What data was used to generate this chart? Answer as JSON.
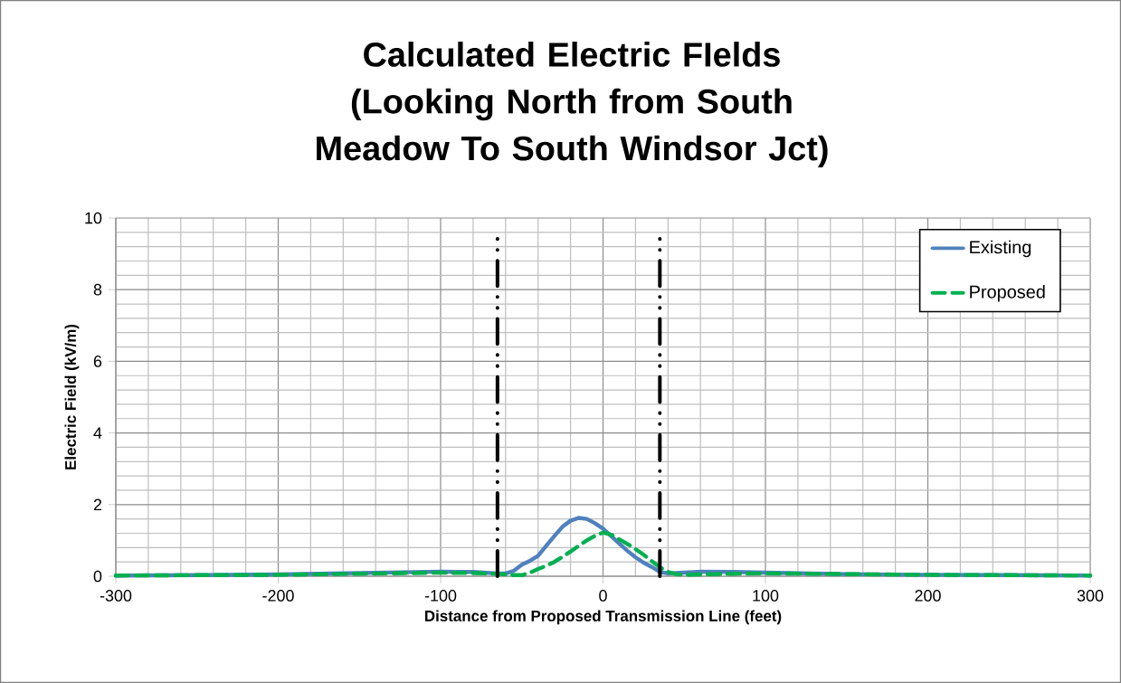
{
  "chart_data": {
    "type": "line",
    "title": "Calculated Electric FIelds (Looking North from South Meadow To South Windsor Jct)",
    "xlabel": "Distance from Proposed Transmission Line (feet)",
    "ylabel": "Electric Field (kV/m)",
    "xlim": [
      -300,
      300
    ],
    "ylim": [
      0,
      10
    ],
    "xticks": [
      -300,
      -200,
      -100,
      0,
      100,
      200,
      300
    ],
    "yticks": [
      0,
      2,
      4,
      6,
      8,
      10
    ],
    "grid": true,
    "legend": "top right",
    "marker": "none",
    "series": [
      {
        "name": "Existing",
        "color": "#4f81bd",
        "line_style": "solid",
        "x": [
          -300,
          -250,
          -200,
          -150,
          -100,
          -80,
          -65,
          -60,
          -55,
          -50,
          -45,
          -40,
          -35,
          -30,
          -25,
          -20,
          -15,
          -10,
          -5,
          0,
          5,
          10,
          15,
          20,
          25,
          30,
          35,
          40,
          50,
          60,
          80,
          100,
          150,
          200,
          250,
          300
        ],
        "values": [
          0.02,
          0.03,
          0.05,
          0.09,
          0.13,
          0.12,
          0.08,
          0.08,
          0.15,
          0.32,
          0.43,
          0.57,
          0.85,
          1.12,
          1.38,
          1.55,
          1.63,
          1.6,
          1.48,
          1.33,
          1.12,
          0.91,
          0.71,
          0.53,
          0.38,
          0.26,
          0.12,
          0.08,
          0.1,
          0.13,
          0.12,
          0.1,
          0.06,
          0.04,
          0.03,
          0.02
        ]
      },
      {
        "name": "Proposed",
        "color": "#00b050",
        "line_style": "dashed",
        "x": [
          -300,
          -250,
          -200,
          -150,
          -100,
          -80,
          -65,
          -60,
          -55,
          -50,
          -45,
          -40,
          -35,
          -30,
          -25,
          -20,
          -15,
          -10,
          -5,
          0,
          5,
          10,
          15,
          20,
          25,
          30,
          35,
          40,
          45,
          50,
          60,
          80,
          100,
          150,
          200,
          250,
          300
        ],
        "values": [
          0.02,
          0.03,
          0.04,
          0.07,
          0.1,
          0.09,
          0.07,
          0.05,
          0.03,
          0.03,
          0.1,
          0.2,
          0.29,
          0.4,
          0.54,
          0.69,
          0.85,
          1.0,
          1.13,
          1.22,
          1.16,
          1.03,
          0.9,
          0.76,
          0.6,
          0.42,
          0.25,
          0.12,
          0.06,
          0.04,
          0.05,
          0.07,
          0.08,
          0.06,
          0.04,
          0.03,
          0.02
        ]
      }
    ],
    "ref_lines": [
      {
        "axis": "x",
        "value": -65,
        "color": "#000000",
        "line_style": "dashed"
      },
      {
        "axis": "x",
        "value": 35,
        "color": "#000000",
        "line_style": "dashed"
      }
    ]
  }
}
